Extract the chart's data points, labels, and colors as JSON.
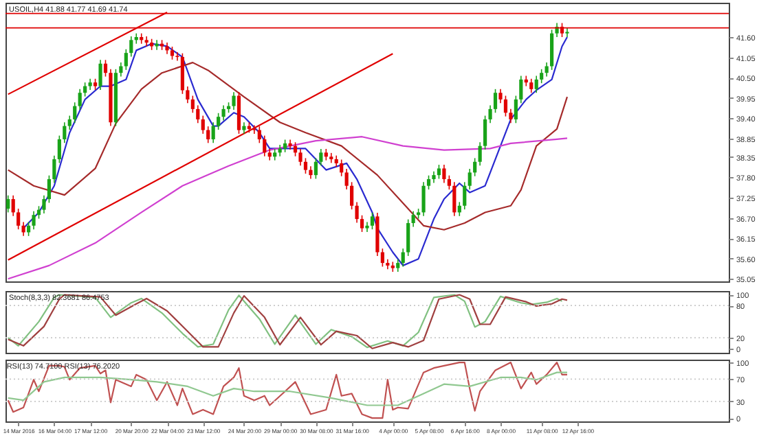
{
  "chart_data": [
    {
      "type": "candlestick",
      "title": "USOIL,H4 41.88 41.77 41.69 41.74",
      "ohlc": [
        [
          36.95,
          37.31,
          36.85,
          37.21
        ],
        [
          37.21,
          37.31,
          36.75,
          36.85
        ],
        [
          36.85,
          36.95,
          36.39,
          36.49
        ],
        [
          36.49,
          36.59,
          36.21,
          36.31
        ],
        [
          36.31,
          36.59,
          36.21,
          36.49
        ],
        [
          36.49,
          36.88,
          36.39,
          36.78
        ],
        [
          36.78,
          37.02,
          36.68,
          36.92
        ],
        [
          36.92,
          37.31,
          36.82,
          37.21
        ],
        [
          37.21,
          37.85,
          37.11,
          37.75
        ],
        [
          37.75,
          38.39,
          37.65,
          38.29
        ],
        [
          38.29,
          38.93,
          38.19,
          38.83
        ],
        [
          38.83,
          39.29,
          38.73,
          39.19
        ],
        [
          39.19,
          39.47,
          39.09,
          39.37
        ],
        [
          39.37,
          39.83,
          39.27,
          39.73
        ],
        [
          39.73,
          40.19,
          39.63,
          40.09
        ],
        [
          40.09,
          40.37,
          39.99,
          40.27
        ],
        [
          40.27,
          40.47,
          40.17,
          40.37
        ],
        [
          40.37,
          40.47,
          40.17,
          40.27
        ],
        [
          40.27,
          40.98,
          40.17,
          40.88
        ],
        [
          40.88,
          40.98,
          40.53,
          40.63
        ],
        [
          40.63,
          40.73,
          39.19,
          39.29
        ],
        [
          39.29,
          40.73,
          39.19,
          40.63
        ],
        [
          40.63,
          40.91,
          40.53,
          40.81
        ],
        [
          40.81,
          41.27,
          40.71,
          41.17
        ],
        [
          41.17,
          41.62,
          41.07,
          41.52
        ],
        [
          41.52,
          41.7,
          41.42,
          41.6
        ],
        [
          41.6,
          41.7,
          41.42,
          41.52
        ],
        [
          41.52,
          41.62,
          41.35,
          41.45
        ],
        [
          41.45,
          41.55,
          41.25,
          41.35
        ],
        [
          41.35,
          41.52,
          41.25,
          41.42
        ],
        [
          41.42,
          41.52,
          41.25,
          41.35
        ],
        [
          41.35,
          41.45,
          41.14,
          41.24
        ],
        [
          41.24,
          41.34,
          40.99,
          41.09
        ],
        [
          41.09,
          41.19,
          40.96,
          41.06
        ],
        [
          41.06,
          41.16,
          40.06,
          40.16
        ],
        [
          40.16,
          40.26,
          39.81,
          39.91
        ],
        [
          39.91,
          40.01,
          39.55,
          39.65
        ],
        [
          39.65,
          39.75,
          39.27,
          39.37
        ],
        [
          39.37,
          39.47,
          38.98,
          39.08
        ],
        [
          39.08,
          39.18,
          38.73,
          38.83
        ],
        [
          38.83,
          39.29,
          38.73,
          39.19
        ],
        [
          39.19,
          39.54,
          39.09,
          39.44
        ],
        [
          39.44,
          39.75,
          39.34,
          39.65
        ],
        [
          39.65,
          39.83,
          39.55,
          39.73
        ],
        [
          39.73,
          40.11,
          39.63,
          40.01
        ],
        [
          40.01,
          40.11,
          38.98,
          39.08
        ],
        [
          39.08,
          39.29,
          38.98,
          39.19
        ],
        [
          39.19,
          39.29,
          39.01,
          39.11
        ],
        [
          39.11,
          39.21,
          38.98,
          39.08
        ],
        [
          39.08,
          39.18,
          38.73,
          38.83
        ],
        [
          38.83,
          38.93,
          38.37,
          38.47
        ],
        [
          38.47,
          38.57,
          38.26,
          38.36
        ],
        [
          38.36,
          38.57,
          38.26,
          38.47
        ],
        [
          38.47,
          38.68,
          38.37,
          38.58
        ],
        [
          38.58,
          38.82,
          38.48,
          38.72
        ],
        [
          38.72,
          38.82,
          38.55,
          38.65
        ],
        [
          38.65,
          38.75,
          38.37,
          38.47
        ],
        [
          38.47,
          38.57,
          38.12,
          38.22
        ],
        [
          38.22,
          38.32,
          37.9,
          38.0
        ],
        [
          38.0,
          38.1,
          37.76,
          37.86
        ],
        [
          37.86,
          38.32,
          37.76,
          38.22
        ],
        [
          38.22,
          38.57,
          38.12,
          38.47
        ],
        [
          38.47,
          38.57,
          38.26,
          38.36
        ],
        [
          38.36,
          38.46,
          38.19,
          38.29
        ],
        [
          38.29,
          38.39,
          38.08,
          38.18
        ],
        [
          38.18,
          38.28,
          37.83,
          37.93
        ],
        [
          37.93,
          38.03,
          37.47,
          37.57
        ],
        [
          37.57,
          37.67,
          36.93,
          37.03
        ],
        [
          37.03,
          37.13,
          36.57,
          36.67
        ],
        [
          36.67,
          36.77,
          36.32,
          36.42
        ],
        [
          36.42,
          36.59,
          36.32,
          36.49
        ],
        [
          36.49,
          36.84,
          36.39,
          36.74
        ],
        [
          36.74,
          36.84,
          35.67,
          35.77
        ],
        [
          35.77,
          35.87,
          35.38,
          35.48
        ],
        [
          35.48,
          35.58,
          35.31,
          35.41
        ],
        [
          35.41,
          35.51,
          35.24,
          35.34
        ],
        [
          35.34,
          35.58,
          35.24,
          35.48
        ],
        [
          35.48,
          35.87,
          35.38,
          35.77
        ],
        [
          35.77,
          36.66,
          35.67,
          36.56
        ],
        [
          36.56,
          36.88,
          36.46,
          36.78
        ],
        [
          36.78,
          36.95,
          36.68,
          36.85
        ],
        [
          36.85,
          37.67,
          36.75,
          37.57
        ],
        [
          37.57,
          37.85,
          37.47,
          37.75
        ],
        [
          37.75,
          37.96,
          37.65,
          37.86
        ],
        [
          37.86,
          38.14,
          37.76,
          38.04
        ],
        [
          38.04,
          38.14,
          37.65,
          37.75
        ],
        [
          37.75,
          37.85,
          37.47,
          37.57
        ],
        [
          37.57,
          37.67,
          36.75,
          36.85
        ],
        [
          36.85,
          37.13,
          36.75,
          37.03
        ],
        [
          37.03,
          37.67,
          36.93,
          37.57
        ],
        [
          37.57,
          38.03,
          37.47,
          37.93
        ],
        [
          37.93,
          38.32,
          37.83,
          38.22
        ],
        [
          38.22,
          38.75,
          38.12,
          38.65
        ],
        [
          38.65,
          39.47,
          38.55,
          39.37
        ],
        [
          39.37,
          39.75,
          39.27,
          39.65
        ],
        [
          39.65,
          40.19,
          39.55,
          40.09
        ],
        [
          40.09,
          40.19,
          39.81,
          39.91
        ],
        [
          39.91,
          40.01,
          39.45,
          39.55
        ],
        [
          39.55,
          39.65,
          39.27,
          39.37
        ],
        [
          39.37,
          40.01,
          39.27,
          39.91
        ],
        [
          39.91,
          40.55,
          39.81,
          40.45
        ],
        [
          40.45,
          40.55,
          40.27,
          40.37
        ],
        [
          40.37,
          40.47,
          40.09,
          40.19
        ],
        [
          40.19,
          40.55,
          40.09,
          40.45
        ],
        [
          40.45,
          40.73,
          40.35,
          40.63
        ],
        [
          40.63,
          40.91,
          40.53,
          40.81
        ],
        [
          40.81,
          41.8,
          40.71,
          41.7
        ],
        [
          41.7,
          41.98,
          41.6,
          41.88
        ],
        [
          41.88,
          41.98,
          41.6,
          41.7
        ],
        [
          41.7,
          41.84,
          41.6,
          41.74
        ],
        null,
        null,
        null,
        null,
        null,
        null,
        null,
        null,
        null,
        null,
        null,
        null,
        null,
        null,
        null,
        null,
        null,
        null,
        null,
        null,
        null,
        null,
        null,
        null,
        null,
        null,
        null,
        null,
        null,
        null,
        null
      ],
      "series": [
        {
          "type": "line",
          "color": "#2a2ad0",
          "values": [
            null,
            null,
            null,
            36.42,
            null,
            null,
            36.85,
            null,
            null,
            37.57,
            null,
            null,
            39.01,
            null,
            null,
            39.91,
            null,
            null,
            40.27,
            null,
            40.27,
            null,
            null,
            40.45,
            null,
            41.24,
            null,
            null,
            41.42,
            null,
            null,
            41.35,
            null,
            null,
            41.06,
            null,
            null,
            39.91,
            null,
            null,
            39.19,
            39.19,
            null,
            null,
            39.55,
            null,
            39.44,
            null,
            null,
            39.01,
            null,
            38.58,
            null,
            null,
            38.58,
            null,
            null,
            null,
            38.58,
            null,
            null,
            null,
            38.0,
            null,
            null,
            null,
            38.18,
            null,
            37.75,
            null,
            null,
            36.85,
            36.42,
            null,
            null,
            35.77,
            null,
            35.41,
            null,
            null,
            35.59,
            null,
            null,
            36.67,
            null,
            37.21,
            null,
            null,
            37.64,
            null,
            37.39,
            null,
            null,
            37.57,
            null,
            null,
            38.65,
            null,
            39.37,
            null,
            null,
            39.91,
            null,
            40.16,
            null,
            null,
            40.45,
            null,
            41.35,
            41.6,
            null,
            null,
            null,
            null,
            null,
            null,
            null,
            null,
            null,
            null,
            null,
            null,
            null,
            null,
            null,
            null,
            null,
            null,
            null,
            null,
            null,
            null,
            null,
            null,
            null,
            null,
            null,
            null,
            null,
            null,
            null
          ]
        },
        {
          "type": "line",
          "color": "#a52a2a",
          "values": [
            38.0,
            null,
            null,
            null,
            null,
            37.57,
            null,
            null,
            null,
            null,
            null,
            37.32,
            null,
            null,
            null,
            null,
            null,
            38.04,
            null,
            null,
            null,
            39.26,
            null,
            null,
            null,
            null,
            40.19,
            null,
            null,
            null,
            40.63,
            null,
            null,
            null,
            null,
            null,
            40.91,
            null,
            null,
            40.7,
            null,
            null,
            null,
            null,
            null,
            null,
            39.98,
            null,
            null,
            null,
            null,
            null,
            null,
            39.29,
            null,
            null,
            null,
            null,
            39.01,
            null,
            null,
            null,
            null,
            null,
            null,
            38.65,
            null,
            null,
            null,
            null,
            null,
            null,
            37.86,
            null,
            null,
            null,
            null,
            37.1,
            null,
            null,
            null,
            36.49,
            null,
            null,
            null,
            36.38,
            null,
            null,
            null,
            36.56,
            null,
            null,
            null,
            36.85,
            null,
            null,
            null,
            null,
            37.03,
            null,
            37.46,
            null,
            null,
            38.65,
            null,
            null,
            null,
            39.11,
            null,
            39.98,
            null,
            null,
            null,
            null,
            null,
            null,
            null,
            null,
            null,
            null,
            null,
            null,
            null,
            null,
            null,
            null,
            null,
            null,
            null,
            null,
            null,
            null,
            null,
            null,
            null,
            null,
            null,
            null,
            null,
            null,
            null
          ]
        },
        {
          "type": "line",
          "color": "#d040d0",
          "values": [
            35.05,
            null,
            null,
            null,
            null,
            null,
            null,
            null,
            35.41,
            null,
            null,
            null,
            null,
            null,
            null,
            null,
            null,
            36.02,
            null,
            null,
            null,
            null,
            null,
            null,
            null,
            null,
            36.85,
            null,
            null,
            null,
            null,
            null,
            null,
            null,
            37.57,
            null,
            null,
            null,
            null,
            null,
            null,
            null,
            null,
            38.11,
            null,
            null,
            null,
            null,
            null,
            null,
            null,
            38.54,
            null,
            null,
            null,
            null,
            null,
            null,
            null,
            null,
            38.79,
            null,
            null,
            null,
            null,
            null,
            null,
            null,
            null,
            38.9,
            null,
            null,
            null,
            null,
            null,
            null,
            null,
            38.65,
            null,
            null,
            null,
            null,
            null,
            null,
            null,
            38.54,
            null,
            null,
            null,
            null,
            null,
            null,
            null,
            null,
            38.58,
            null,
            null,
            null,
            38.72,
            null,
            null,
            null,
            null,
            null,
            null,
            null,
            null,
            38.83,
            null,
            38.86,
            null,
            null,
            null,
            null,
            null,
            null,
            null,
            null,
            null,
            null,
            null,
            null,
            null,
            null,
            null,
            null,
            null,
            null,
            null,
            null,
            null,
            null,
            null,
            null,
            null,
            null,
            null,
            null,
            null,
            null,
            null
          ]
        },
        {
          "type": "line",
          "color": "#e00000",
          "values": [
            40.05,
            null,
            null,
            null,
            null,
            null,
            null,
            null,
            null,
            null,
            null,
            null,
            null,
            null,
            null,
            null,
            null,
            null,
            null,
            null,
            null,
            null,
            null,
            null,
            null,
            null,
            null,
            null,
            null,
            null,
            null,
            42.27,
            null,
            null,
            null,
            null,
            null,
            null,
            null,
            null,
            null,
            null,
            null,
            null,
            null,
            null,
            null,
            null,
            null,
            null,
            null,
            null,
            null,
            null,
            null,
            null,
            null,
            null,
            null,
            null,
            null,
            null,
            null,
            null,
            null,
            null,
            null,
            null,
            null,
            null,
            null,
            null,
            null,
            null,
            null,
            null,
            null,
            null,
            null,
            null,
            null,
            null,
            null,
            null,
            null,
            null,
            null,
            null,
            null,
            null,
            null,
            null,
            null,
            null,
            null,
            null,
            null,
            null,
            null,
            null,
            null,
            null,
            null,
            null,
            null,
            null,
            null,
            null,
            null,
            null,
            null,
            null,
            null,
            null,
            null,
            null,
            null,
            null,
            null,
            null,
            null,
            null,
            null,
            null,
            null,
            null,
            null,
            null,
            null,
            null,
            null,
            null,
            null,
            null,
            null,
            null,
            null,
            null,
            null,
            null,
            null
          ]
        },
        {
          "type": "line",
          "color": "#e00000",
          "values": [
            35.56,
            null,
            null,
            null,
            null,
            null,
            null,
            null,
            null,
            null,
            null,
            null,
            null,
            null,
            null,
            null,
            null,
            null,
            null,
            null,
            null,
            null,
            null,
            null,
            null,
            null,
            null,
            null,
            null,
            null,
            null,
            null,
            null,
            null,
            null,
            null,
            null,
            null,
            null,
            null,
            null,
            null,
            null,
            null,
            null,
            null,
            null,
            null,
            null,
            null,
            null,
            null,
            null,
            null,
            null,
            null,
            null,
            null,
            null,
            null,
            null,
            null,
            null,
            null,
            null,
            null,
            null,
            null,
            null,
            null,
            null,
            null,
            null,
            null,
            null,
            41.15,
            null,
            null,
            null,
            null,
            null,
            null,
            null,
            null,
            null,
            null,
            null,
            null,
            null,
            null,
            null,
            null,
            null,
            null,
            null,
            null,
            null,
            null,
            null,
            null,
            null,
            null,
            null,
            null,
            null,
            null,
            null,
            null,
            null,
            null,
            null,
            null,
            null,
            null,
            null,
            null,
            null,
            null,
            null,
            null,
            null,
            null,
            null,
            null,
            null,
            null,
            null,
            null,
            null,
            null,
            null,
            null,
            null,
            null,
            null,
            null,
            null,
            null,
            null,
            null,
            null
          ]
        }
      ],
      "ylim": [
        34.98,
        42.53
      ],
      "yticks": [
        {
          "value": 35.05,
          "label": "35.05"
        },
        {
          "value": 35.6,
          "label": "35.60"
        },
        {
          "value": 36.15,
          "label": "36.15"
        },
        {
          "value": 36.7,
          "label": "36.70"
        },
        {
          "value": 37.25,
          "label": "37.25"
        },
        {
          "value": 37.8,
          "label": "37.80"
        },
        {
          "value": 38.35,
          "label": "38.35"
        },
        {
          "value": 38.85,
          "label": "38.85"
        },
        {
          "value": 39.4,
          "label": "39.40"
        },
        {
          "value": 39.95,
          "label": "39.95"
        },
        {
          "value": 40.5,
          "label": "40.50"
        },
        {
          "value": 41.05,
          "label": "41.05"
        },
        {
          "value": 41.6,
          "label": "41.60"
        }
      ],
      "ref_lines": [
        {
          "axis": "y",
          "value": 42.24,
          "color": "#e00000",
          "line_style": "solid"
        },
        {
          "axis": "y",
          "value": 41.85,
          "color": "#e00000",
          "line_style": "solid"
        }
      ],
      "tick_labels": "y"
    },
    {
      "type": "line",
      "title": "Stoch(8,3,3) 82.3681 86.4753",
      "series": [
        {
          "color": "#80c080",
          "values": [
            20,
            null,
            5,
            null,
            null,
            null,
            50,
            null,
            null,
            95,
            100,
            null,
            null,
            null,
            null,
            null,
            null,
            95,
            null,
            null,
            58,
            null,
            null,
            null,
            85,
            null,
            93,
            null,
            null,
            null,
            66,
            null,
            null,
            null,
            28,
            null,
            null,
            3,
            null,
            null,
            8,
            null,
            null,
            72,
            null,
            99,
            null,
            null,
            null,
            55,
            null,
            null,
            8,
            null,
            null,
            null,
            62,
            null,
            null,
            null,
            8,
            null,
            null,
            35,
            null,
            null,
            null,
            22,
            null,
            null,
            2,
            null,
            null,
            null,
            14,
            null,
            null,
            5,
            null,
            null,
            30,
            null,
            null,
            95,
            null,
            null,
            null,
            100,
            null,
            88,
            null,
            40,
            null,
            50,
            null,
            null,
            97,
            null,
            null,
            null,
            85,
            null,
            82,
            null,
            null,
            86,
            null,
            93,
            88,
            null,
            null,
            null,
            null,
            null,
            null,
            null,
            null,
            null,
            null,
            null,
            null,
            null,
            null,
            null,
            null,
            null,
            null,
            null,
            null,
            null,
            null,
            null,
            null,
            null,
            null,
            null,
            null,
            null,
            null,
            null,
            null
          ]
        },
        {
          "color": "#a04040",
          "values": [
            17,
            null,
            null,
            5,
            null,
            null,
            null,
            41,
            null,
            null,
            92,
            100,
            null,
            null,
            null,
            null,
            null,
            null,
            96,
            null,
            null,
            62,
            null,
            null,
            null,
            83,
            null,
            93,
            null,
            null,
            null,
            70,
            null,
            null,
            null,
            32,
            null,
            null,
            3,
            null,
            null,
            3,
            null,
            null,
            66,
            null,
            98,
            null,
            null,
            null,
            58,
            null,
            null,
            7,
            null,
            null,
            null,
            58,
            null,
            null,
            null,
            7,
            null,
            null,
            32,
            null,
            null,
            null,
            24,
            null,
            null,
            0,
            null,
            null,
            null,
            11,
            null,
            null,
            3,
            null,
            null,
            15,
            null,
            null,
            92,
            null,
            null,
            null,
            100,
            null,
            92,
            null,
            45,
            null,
            45,
            null,
            null,
            96,
            null,
            null,
            null,
            87,
            null,
            79,
            null,
            null,
            83,
            null,
            92,
            90,
            null,
            null,
            null,
            null,
            null,
            null,
            null,
            null,
            null,
            null,
            null,
            null,
            null,
            null,
            null,
            null,
            null,
            null,
            null,
            null,
            null,
            null,
            null,
            null,
            null,
            null,
            null,
            null,
            null,
            null,
            null
          ]
        }
      ],
      "ylim": [
        -8,
        107
      ],
      "yticks": [
        0,
        20,
        80,
        100
      ],
      "ref_lines": [
        {
          "axis": "y",
          "value": 80,
          "color": "#c8c8c8",
          "line_style": "dotted"
        },
        {
          "axis": "y",
          "value": 20,
          "color": "#c8c8c8",
          "line_style": "dotted"
        }
      ],
      "tick_labels": "y"
    },
    {
      "type": "line",
      "title": "RSI(13) 74.7100 RSI(13) 76.2020",
      "categories": [
        null,
        null,
        "14 Mar 2016",
        null,
        null,
        null,
        null,
        null,
        null,
        "16 Mar 04:00",
        null,
        null,
        null,
        null,
        null,
        null,
        "17 Mar 12:00",
        null,
        null,
        null,
        null,
        null,
        null,
        null,
        "20 Mar 20:00",
        null,
        null,
        null,
        null,
        null,
        null,
        "22 Mar 04:00",
        null,
        null,
        null,
        null,
        null,
        null,
        "23 Mar 12:00",
        null,
        null,
        null,
        null,
        null,
        null,
        null,
        "24 Mar 20:00",
        null,
        null,
        null,
        null,
        null,
        null,
        "29 Mar 00:00",
        null,
        null,
        null,
        null,
        null,
        null,
        "30 Mar 08:00",
        null,
        null,
        null,
        null,
        null,
        null,
        "31 Mar 16:00",
        null,
        null,
        null,
        null,
        null,
        null,
        null,
        "4 Apr 00:00",
        null,
        null,
        null,
        null,
        null,
        null,
        "5 Apr 08:00",
        null,
        null,
        null,
        null,
        null,
        null,
        "6 Apr 16:00",
        null,
        null,
        null,
        null,
        null,
        null,
        "8 Apr 00:00",
        null,
        null,
        null,
        null,
        null,
        null,
        null,
        "11 Apr 08:00",
        null,
        null,
        null,
        null,
        null,
        null,
        "12 Apr 16:00",
        null,
        null,
        null,
        null,
        null,
        null,
        null,
        null,
        null,
        null,
        null,
        null,
        null,
        null,
        null,
        null,
        null,
        null,
        null,
        null,
        null,
        null,
        null,
        null,
        null,
        null,
        null,
        null,
        null
      ],
      "series": [
        {
          "color": "#c05050",
          "values": [
            32,
            11,
            null,
            19,
            null,
            69,
            48,
            null,
            94,
            null,
            94,
            92,
            69,
            null,
            90,
            null,
            null,
            94,
            80,
            86,
            28,
            69,
            null,
            null,
            57,
            78,
            null,
            69,
            null,
            32,
            null,
            65,
            null,
            23,
            53,
            null,
            7,
            null,
            15,
            null,
            7,
            null,
            57,
            null,
            73,
            90,
            40,
            null,
            32,
            null,
            40,
            23,
            null,
            null,
            48,
            null,
            65,
            null,
            null,
            7,
            null,
            null,
            15,
            null,
            78,
            40,
            null,
            44,
            null,
            7,
            null,
            0,
            null,
            0,
            69,
            15,
            19,
            null,
            17,
            null,
            null,
            82,
            null,
            90,
            null,
            94,
            null,
            null,
            100,
            100,
            53,
            13,
            48,
            null,
            null,
            86,
            null,
            null,
            100,
            null,
            53,
            null,
            82,
            61,
            null,
            78,
            null,
            100,
            78,
            78,
            null,
            null,
            null,
            null,
            null,
            null,
            null,
            null,
            null,
            null,
            null,
            null,
            null,
            null,
            null,
            null,
            null,
            null,
            null,
            null,
            null,
            null,
            null,
            null,
            null,
            null,
            null,
            null,
            null,
            null,
            null
          ]
        },
        {
          "color": "#90c890",
          "values": [
            36,
            null,
            null,
            32,
            null,
            null,
            null,
            65,
            null,
            null,
            null,
            73,
            null,
            null,
            null,
            null,
            null,
            null,
            73,
            null,
            null,
            null,
            null,
            null,
            69,
            null,
            null,
            null,
            null,
            65,
            null,
            null,
            null,
            null,
            null,
            57,
            null,
            null,
            null,
            null,
            40,
            null,
            null,
            null,
            53,
            null,
            null,
            null,
            48,
            null,
            null,
            null,
            null,
            null,
            null,
            48,
            null,
            null,
            null,
            null,
            null,
            null,
            null,
            36,
            null,
            null,
            null,
            null,
            null,
            null,
            23,
            null,
            null,
            null,
            null,
            null,
            23,
            null,
            null,
            null,
            null,
            44,
            null,
            null,
            null,
            61,
            null,
            null,
            null,
            null,
            57,
            null,
            null,
            null,
            null,
            null,
            73,
            null,
            null,
            null,
            73,
            null,
            null,
            69,
            null,
            null,
            null,
            82,
            null,
            82,
            null,
            null,
            null,
            null,
            null,
            null,
            null,
            null,
            null,
            null,
            null,
            null,
            null,
            null,
            null,
            null,
            null,
            null,
            null,
            null,
            null,
            null,
            null,
            null,
            null,
            null,
            null,
            null,
            null,
            null,
            null
          ]
        }
      ],
      "ylim": [
        -6,
        105
      ],
      "yticks": [
        0,
        30,
        70,
        100
      ],
      "ref_lines": [
        {
          "axis": "y",
          "value": 70,
          "color": "#c8c8c8",
          "line_style": "dotted"
        },
        {
          "axis": "y",
          "value": 30,
          "color": "#c8c8c8",
          "line_style": "dotted"
        }
      ]
    }
  ]
}
